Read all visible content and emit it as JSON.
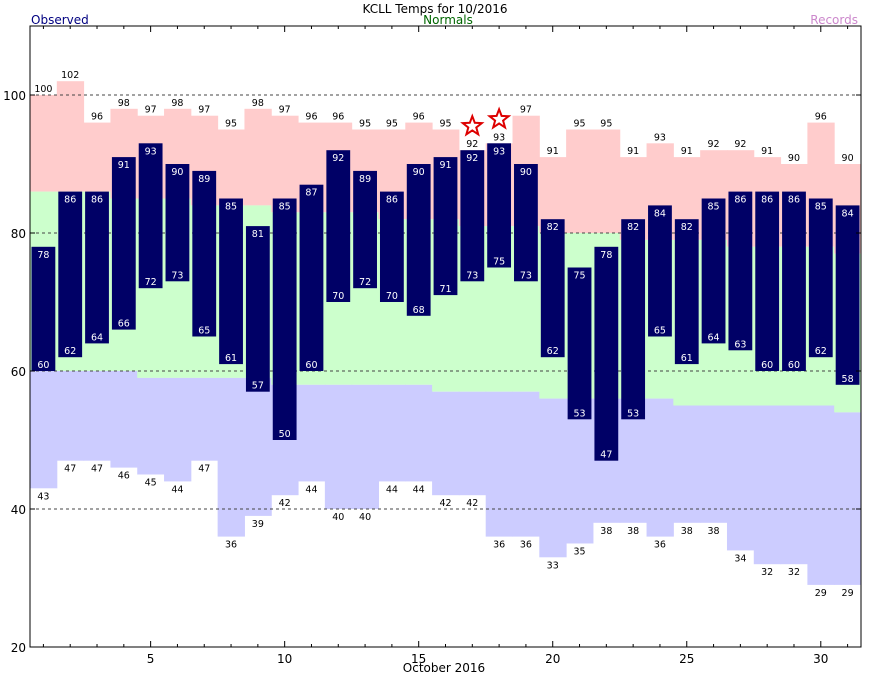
{
  "header": {
    "title": "KCLL Temps for 10/2016",
    "observed_label": "Observed",
    "normals_label": "Normals",
    "records_label": "Records"
  },
  "colors": {
    "record_band": "#ffcccc",
    "normal_band": "#ccffcc",
    "low_band": "#ccccff",
    "observed_bar": "#000066",
    "observed_text": "#000080",
    "normals_text": "#006600",
    "records_text": "#cc88cc",
    "star": "#dd0000"
  },
  "chart_data": {
    "type": "bar",
    "title": "KCLL Temps for 10/2016",
    "xlabel": "October 2016",
    "ylabel": "",
    "xlim": [
      0.5,
      31.5
    ],
    "ylim": [
      20,
      110
    ],
    "x_ticks": [
      5,
      10,
      15,
      20,
      25,
      30
    ],
    "y_ticks": [
      20,
      40,
      60,
      80,
      100
    ],
    "dashed_gridlines": [
      40,
      60,
      80,
      100
    ],
    "legend": [
      "Observed",
      "Normals",
      "Records"
    ],
    "days": [
      1,
      2,
      3,
      4,
      5,
      6,
      7,
      8,
      9,
      10,
      11,
      12,
      13,
      14,
      15,
      16,
      17,
      18,
      19,
      20,
      21,
      22,
      23,
      24,
      25,
      26,
      27,
      28,
      29,
      30,
      31
    ],
    "record_high": [
      100,
      102,
      96,
      98,
      97,
      98,
      97,
      95,
      98,
      97,
      96,
      96,
      95,
      95,
      96,
      95,
      92,
      93,
      97,
      91,
      95,
      95,
      91,
      93,
      91,
      92,
      92,
      91,
      90,
      96,
      90
    ],
    "record_low": [
      43,
      47,
      47,
      46,
      45,
      44,
      47,
      36,
      39,
      42,
      44,
      40,
      40,
      44,
      44,
      42,
      42,
      36,
      36,
      33,
      35,
      38,
      38,
      36,
      38,
      38,
      34,
      32,
      32,
      29,
      29
    ],
    "normal_high": [
      86,
      86,
      86,
      85,
      85,
      85,
      84,
      84,
      84,
      83,
      83,
      83,
      83,
      82,
      82,
      82,
      81,
      81,
      81,
      80,
      80,
      80,
      79,
      79,
      79,
      79,
      78,
      78,
      78,
      78,
      77
    ],
    "normal_low": [
      60,
      60,
      60,
      60,
      59,
      59,
      59,
      59,
      59,
      58,
      58,
      58,
      58,
      58,
      58,
      57,
      57,
      57,
      57,
      56,
      56,
      56,
      56,
      56,
      55,
      55,
      55,
      55,
      55,
      55,
      54
    ],
    "series": [
      {
        "name": "Observed",
        "high": [
          78,
          86,
          86,
          91,
          93,
          90,
          89,
          85,
          81,
          85,
          87,
          92,
          89,
          86,
          90,
          91,
          92,
          93,
          90,
          82,
          75,
          78,
          82,
          84,
          82,
          85,
          86,
          86,
          86,
          85,
          84
        ],
        "low": [
          60,
          62,
          64,
          66,
          72,
          73,
          65,
          61,
          57,
          50,
          60,
          70,
          72,
          70,
          68,
          71,
          73,
          75,
          73,
          62,
          53,
          47,
          53,
          65,
          61,
          64,
          63,
          60,
          60,
          62,
          58
        ]
      }
    ],
    "record_set_days": [
      17,
      18
    ]
  }
}
